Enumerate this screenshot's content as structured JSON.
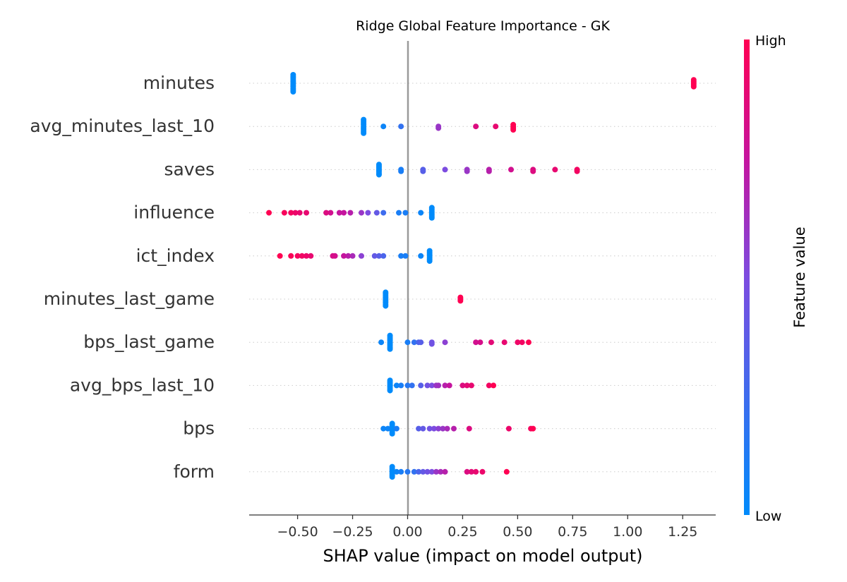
{
  "chart_data": {
    "type": "scatter",
    "title": "Ridge Global Feature Importance - GK",
    "xlabel": "SHAP value (impact on model output)",
    "xlim": [
      -0.72,
      1.4
    ],
    "xticks": [
      -0.5,
      -0.25,
      0.0,
      0.25,
      0.5,
      0.75,
      1.0,
      1.25
    ],
    "xtick_labels": [
      "−0.50",
      "−0.25",
      "0.00",
      "0.25",
      "0.50",
      "0.75",
      "1.00",
      "1.25"
    ],
    "colorbar": {
      "label": "Feature value",
      "high_label": "High",
      "low_label": "Low",
      "low_color": "#008bfb",
      "high_color": "#ff0052"
    },
    "zero_line_color": "#999999",
    "grid": false,
    "features": [
      {
        "name": "minutes",
        "points": [
          [
            -0.52,
            0,
            0.0
          ],
          [
            -0.52,
            0.08,
            0.0
          ],
          [
            -0.52,
            -0.08,
            0.0
          ],
          [
            -0.52,
            0.16,
            0.0
          ],
          [
            -0.52,
            -0.16,
            0.0
          ],
          [
            -0.52,
            0.24,
            0.0
          ],
          [
            -0.52,
            -0.24,
            0.0
          ],
          [
            -0.52,
            0.32,
            0.0
          ],
          [
            -0.52,
            -0.32,
            0.0
          ],
          [
            -0.52,
            0.4,
            0.0
          ],
          [
            -0.52,
            -0.4,
            0.0
          ],
          [
            1.3,
            0,
            1.0
          ],
          [
            1.3,
            0.08,
            1.0
          ],
          [
            1.3,
            -0.08,
            1.0
          ],
          [
            1.3,
            0.16,
            1.0
          ],
          [
            1.3,
            -0.16,
            1.0
          ]
        ]
      },
      {
        "name": "avg_minutes_last_10",
        "points": [
          [
            -0.2,
            0,
            0.0
          ],
          [
            -0.2,
            0.08,
            0.0
          ],
          [
            -0.2,
            -0.08,
            0.0
          ],
          [
            -0.2,
            0.16,
            0.0
          ],
          [
            -0.2,
            -0.16,
            0.0
          ],
          [
            -0.2,
            0.24,
            0.0
          ],
          [
            -0.2,
            -0.24,
            0.0
          ],
          [
            -0.2,
            0.32,
            0.0
          ],
          [
            -0.2,
            -0.32,
            0.0
          ],
          [
            -0.11,
            0,
            0.05
          ],
          [
            -0.03,
            0,
            0.2
          ],
          [
            0.14,
            0,
            0.6
          ],
          [
            0.14,
            0.08,
            0.6
          ],
          [
            0.31,
            0,
            0.85
          ],
          [
            0.4,
            0,
            0.9
          ],
          [
            0.48,
            0,
            1.0
          ],
          [
            0.48,
            0.08,
            1.0
          ],
          [
            0.48,
            -0.08,
            1.0
          ],
          [
            0.48,
            0.16,
            1.0
          ]
        ]
      },
      {
        "name": "saves",
        "points": [
          [
            -0.13,
            0,
            0.0
          ],
          [
            -0.13,
            0.08,
            0.0
          ],
          [
            -0.13,
            -0.08,
            0.0
          ],
          [
            -0.13,
            0.16,
            0.0
          ],
          [
            -0.13,
            -0.16,
            0.0
          ],
          [
            -0.13,
            0.24,
            0.0
          ],
          [
            -0.13,
            -0.24,
            0.0
          ],
          [
            -0.03,
            0,
            0.1
          ],
          [
            -0.03,
            0.08,
            0.1
          ],
          [
            0.07,
            0,
            0.35
          ],
          [
            0.07,
            0.08,
            0.35
          ],
          [
            0.17,
            0,
            0.5
          ],
          [
            0.27,
            0,
            0.6
          ],
          [
            0.27,
            0.08,
            0.6
          ],
          [
            0.37,
            0,
            0.7
          ],
          [
            0.37,
            0.08,
            0.7
          ],
          [
            0.47,
            0,
            0.8
          ],
          [
            0.57,
            0,
            0.85
          ],
          [
            0.57,
            0.08,
            0.85
          ],
          [
            0.67,
            0,
            0.9
          ],
          [
            0.77,
            0,
            0.95
          ],
          [
            0.77,
            0.08,
            0.95
          ]
        ]
      },
      {
        "name": "influence",
        "points": [
          [
            0.11,
            0,
            0.0
          ],
          [
            0.11,
            0.08,
            0.0
          ],
          [
            0.11,
            -0.08,
            0.0
          ],
          [
            0.11,
            0.16,
            0.0
          ],
          [
            0.11,
            -0.16,
            0.0
          ],
          [
            0.11,
            0.24,
            0.0
          ],
          [
            0.11,
            -0.24,
            0.0
          ],
          [
            0.06,
            0,
            0.05
          ],
          [
            -0.01,
            0,
            0.1
          ],
          [
            -0.04,
            0,
            0.1
          ],
          [
            -0.11,
            0,
            0.25
          ],
          [
            -0.14,
            0,
            0.4
          ],
          [
            -0.18,
            0,
            0.5
          ],
          [
            -0.21,
            0,
            0.6
          ],
          [
            -0.26,
            0,
            0.7
          ],
          [
            -0.29,
            0,
            0.75
          ],
          [
            -0.31,
            0,
            0.75
          ],
          [
            -0.35,
            0,
            0.8
          ],
          [
            -0.37,
            0,
            0.85
          ],
          [
            -0.46,
            0,
            0.9
          ],
          [
            -0.49,
            0,
            0.9
          ],
          [
            -0.51,
            0,
            0.92
          ],
          [
            -0.53,
            0,
            0.95
          ],
          [
            -0.56,
            0,
            0.97
          ],
          [
            -0.63,
            0,
            1.0
          ]
        ]
      },
      {
        "name": "ict_index",
        "points": [
          [
            0.1,
            0,
            0.0
          ],
          [
            0.1,
            0.08,
            0.0
          ],
          [
            0.1,
            -0.08,
            0.0
          ],
          [
            0.1,
            0.16,
            0.0
          ],
          [
            0.1,
            -0.16,
            0.0
          ],
          [
            0.1,
            0.24,
            0.0
          ],
          [
            0.1,
            -0.24,
            0.0
          ],
          [
            0.06,
            0,
            0.05
          ],
          [
            -0.01,
            0,
            0.1
          ],
          [
            -0.03,
            0,
            0.1
          ],
          [
            -0.11,
            0,
            0.3
          ],
          [
            -0.13,
            0,
            0.35
          ],
          [
            -0.15,
            0,
            0.4
          ],
          [
            -0.21,
            0,
            0.55
          ],
          [
            -0.25,
            0,
            0.65
          ],
          [
            -0.27,
            0,
            0.7
          ],
          [
            -0.29,
            0,
            0.75
          ],
          [
            -0.33,
            0,
            0.8
          ],
          [
            -0.34,
            0,
            0.82
          ],
          [
            -0.44,
            0,
            0.9
          ],
          [
            -0.46,
            0,
            0.92
          ],
          [
            -0.48,
            0,
            0.94
          ],
          [
            -0.5,
            0,
            0.96
          ],
          [
            -0.53,
            0,
            0.98
          ],
          [
            -0.58,
            0,
            1.0
          ]
        ]
      },
      {
        "name": "minutes_last_game",
        "points": [
          [
            -0.1,
            0,
            0.0
          ],
          [
            -0.1,
            0.08,
            0.0
          ],
          [
            -0.1,
            -0.08,
            0.0
          ],
          [
            -0.1,
            0.16,
            0.0
          ],
          [
            -0.1,
            -0.16,
            0.0
          ],
          [
            -0.1,
            0.24,
            0.0
          ],
          [
            -0.1,
            -0.24,
            0.0
          ],
          [
            -0.1,
            0.32,
            0.0
          ],
          [
            -0.1,
            -0.32,
            0.0
          ],
          [
            0.24,
            0,
            1.0
          ],
          [
            0.24,
            0.08,
            1.0
          ],
          [
            0.24,
            -0.08,
            1.0
          ]
        ]
      },
      {
        "name": "bps_last_game",
        "points": [
          [
            -0.08,
            0,
            0.0
          ],
          [
            -0.08,
            0.08,
            0.0
          ],
          [
            -0.08,
            -0.08,
            0.0
          ],
          [
            -0.08,
            0.16,
            0.0
          ],
          [
            -0.08,
            -0.16,
            0.0
          ],
          [
            -0.08,
            0.24,
            0.0
          ],
          [
            -0.08,
            -0.24,
            0.0
          ],
          [
            -0.08,
            0.32,
            0.0
          ],
          [
            -0.08,
            -0.32,
            0.0
          ],
          [
            -0.12,
            0,
            0.05
          ],
          [
            0.0,
            0,
            0.1
          ],
          [
            0.03,
            0,
            0.2
          ],
          [
            0.05,
            0,
            0.3
          ],
          [
            0.06,
            0,
            0.35
          ],
          [
            0.11,
            0,
            0.45
          ],
          [
            0.11,
            0.08,
            0.45
          ],
          [
            0.17,
            0,
            0.55
          ],
          [
            0.31,
            0,
            0.8
          ],
          [
            0.33,
            0,
            0.82
          ],
          [
            0.38,
            0,
            0.88
          ],
          [
            0.44,
            0,
            0.9
          ],
          [
            0.5,
            0,
            0.93
          ],
          [
            0.52,
            0,
            0.95
          ],
          [
            0.55,
            0,
            1.0
          ]
        ]
      },
      {
        "name": "avg_bps_last_10",
        "points": [
          [
            -0.08,
            0,
            0.0
          ],
          [
            -0.08,
            0.08,
            0.0
          ],
          [
            -0.08,
            -0.08,
            0.0
          ],
          [
            -0.08,
            0.16,
            0.0
          ],
          [
            -0.08,
            -0.16,
            0.0
          ],
          [
            -0.08,
            0.24,
            0.0
          ],
          [
            -0.08,
            -0.24,
            0.0
          ],
          [
            -0.05,
            0,
            0.05
          ],
          [
            -0.03,
            0,
            0.1
          ],
          [
            0.0,
            0,
            0.15
          ],
          [
            0.02,
            0,
            0.2
          ],
          [
            0.06,
            0,
            0.35
          ],
          [
            0.09,
            0,
            0.45
          ],
          [
            0.11,
            0,
            0.5
          ],
          [
            0.13,
            0,
            0.6
          ],
          [
            0.14,
            0,
            0.62
          ],
          [
            0.17,
            0,
            0.7
          ],
          [
            0.19,
            0,
            0.75
          ],
          [
            0.25,
            0,
            0.85
          ],
          [
            0.27,
            0,
            0.88
          ],
          [
            0.29,
            0,
            0.9
          ],
          [
            0.37,
            0,
            0.95
          ],
          [
            0.39,
            0,
            1.0
          ]
        ]
      },
      {
        "name": "bps",
        "points": [
          [
            -0.07,
            0,
            0.0
          ],
          [
            -0.07,
            0.08,
            0.0
          ],
          [
            -0.07,
            -0.08,
            0.0
          ],
          [
            -0.07,
            0.16,
            0.0
          ],
          [
            -0.07,
            -0.16,
            0.0
          ],
          [
            -0.07,
            0.24,
            0.0
          ],
          [
            -0.07,
            -0.24,
            0.0
          ],
          [
            -0.11,
            0,
            0.05
          ],
          [
            -0.09,
            0,
            0.05
          ],
          [
            -0.05,
            0,
            0.1
          ],
          [
            0.05,
            0,
            0.35
          ],
          [
            0.07,
            0,
            0.4
          ],
          [
            0.1,
            0,
            0.45
          ],
          [
            0.12,
            0,
            0.5
          ],
          [
            0.14,
            0,
            0.55
          ],
          [
            0.16,
            0,
            0.6
          ],
          [
            0.18,
            0,
            0.65
          ],
          [
            0.21,
            0,
            0.7
          ],
          [
            0.28,
            0,
            0.85
          ],
          [
            0.46,
            0,
            0.92
          ],
          [
            0.56,
            0,
            0.96
          ],
          [
            0.57,
            0,
            1.0
          ]
        ]
      },
      {
        "name": "form",
        "points": [
          [
            -0.07,
            0,
            0.0
          ],
          [
            -0.07,
            0.08,
            0.0
          ],
          [
            -0.07,
            -0.08,
            0.0
          ],
          [
            -0.07,
            0.16,
            0.0
          ],
          [
            -0.07,
            -0.16,
            0.0
          ],
          [
            -0.07,
            0.24,
            0.0
          ],
          [
            -0.07,
            -0.24,
            0.0
          ],
          [
            -0.05,
            0,
            0.05
          ],
          [
            -0.03,
            0,
            0.1
          ],
          [
            0.0,
            0,
            0.15
          ],
          [
            0.03,
            0,
            0.2
          ],
          [
            0.05,
            0,
            0.3
          ],
          [
            0.07,
            0,
            0.4
          ],
          [
            0.09,
            0,
            0.45
          ],
          [
            0.11,
            0,
            0.5
          ],
          [
            0.13,
            0,
            0.6
          ],
          [
            0.15,
            0,
            0.65
          ],
          [
            0.17,
            0,
            0.7
          ],
          [
            0.27,
            0,
            0.85
          ],
          [
            0.29,
            0,
            0.88
          ],
          [
            0.31,
            0,
            0.9
          ],
          [
            0.34,
            0,
            0.92
          ],
          [
            0.45,
            0,
            1.0
          ]
        ]
      }
    ]
  }
}
